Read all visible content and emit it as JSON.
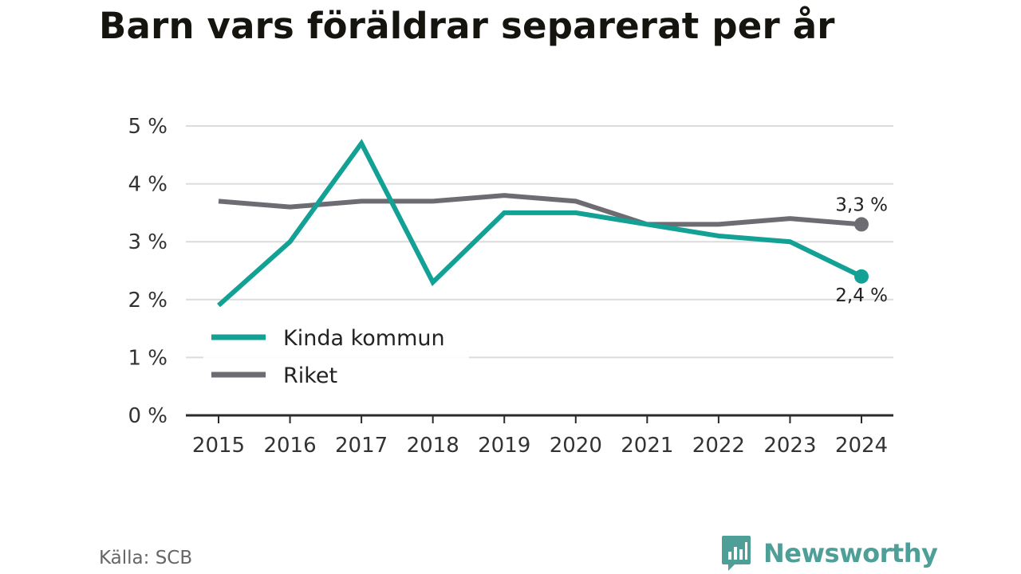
{
  "title": "Barn vars föräldrar separerat per år",
  "source": "Källa: SCB",
  "brand": {
    "name": "Newsworthy",
    "icon": "bar-chart-bubble-icon",
    "color": "#4e9f98"
  },
  "chart_data": {
    "type": "line",
    "title": "Barn vars föräldrar separerat per år",
    "x": [
      "2015",
      "2016",
      "2017",
      "2018",
      "2019",
      "2020",
      "2021",
      "2022",
      "2023",
      "2024"
    ],
    "series": [
      {
        "name": "Kinda kommun",
        "color": "#13a195",
        "values": [
          1.9,
          3.0,
          4.7,
          2.3,
          3.5,
          3.5,
          3.3,
          3.1,
          3.0,
          2.4
        ],
        "end_label": "2,4 %"
      },
      {
        "name": "Riket",
        "color": "#6d6c73",
        "values": [
          3.7,
          3.6,
          3.7,
          3.7,
          3.8,
          3.7,
          3.3,
          3.3,
          3.4,
          3.3
        ],
        "end_label": "3,3 %"
      }
    ],
    "yticks": [
      0,
      1,
      2,
      3,
      4,
      5
    ],
    "ytick_labels": [
      "0 %",
      "1 %",
      "2 %",
      "3 %",
      "4 %",
      "5 %"
    ],
    "ylim": [
      0,
      5
    ],
    "grid": true,
    "legend_position": "bottom-left"
  }
}
